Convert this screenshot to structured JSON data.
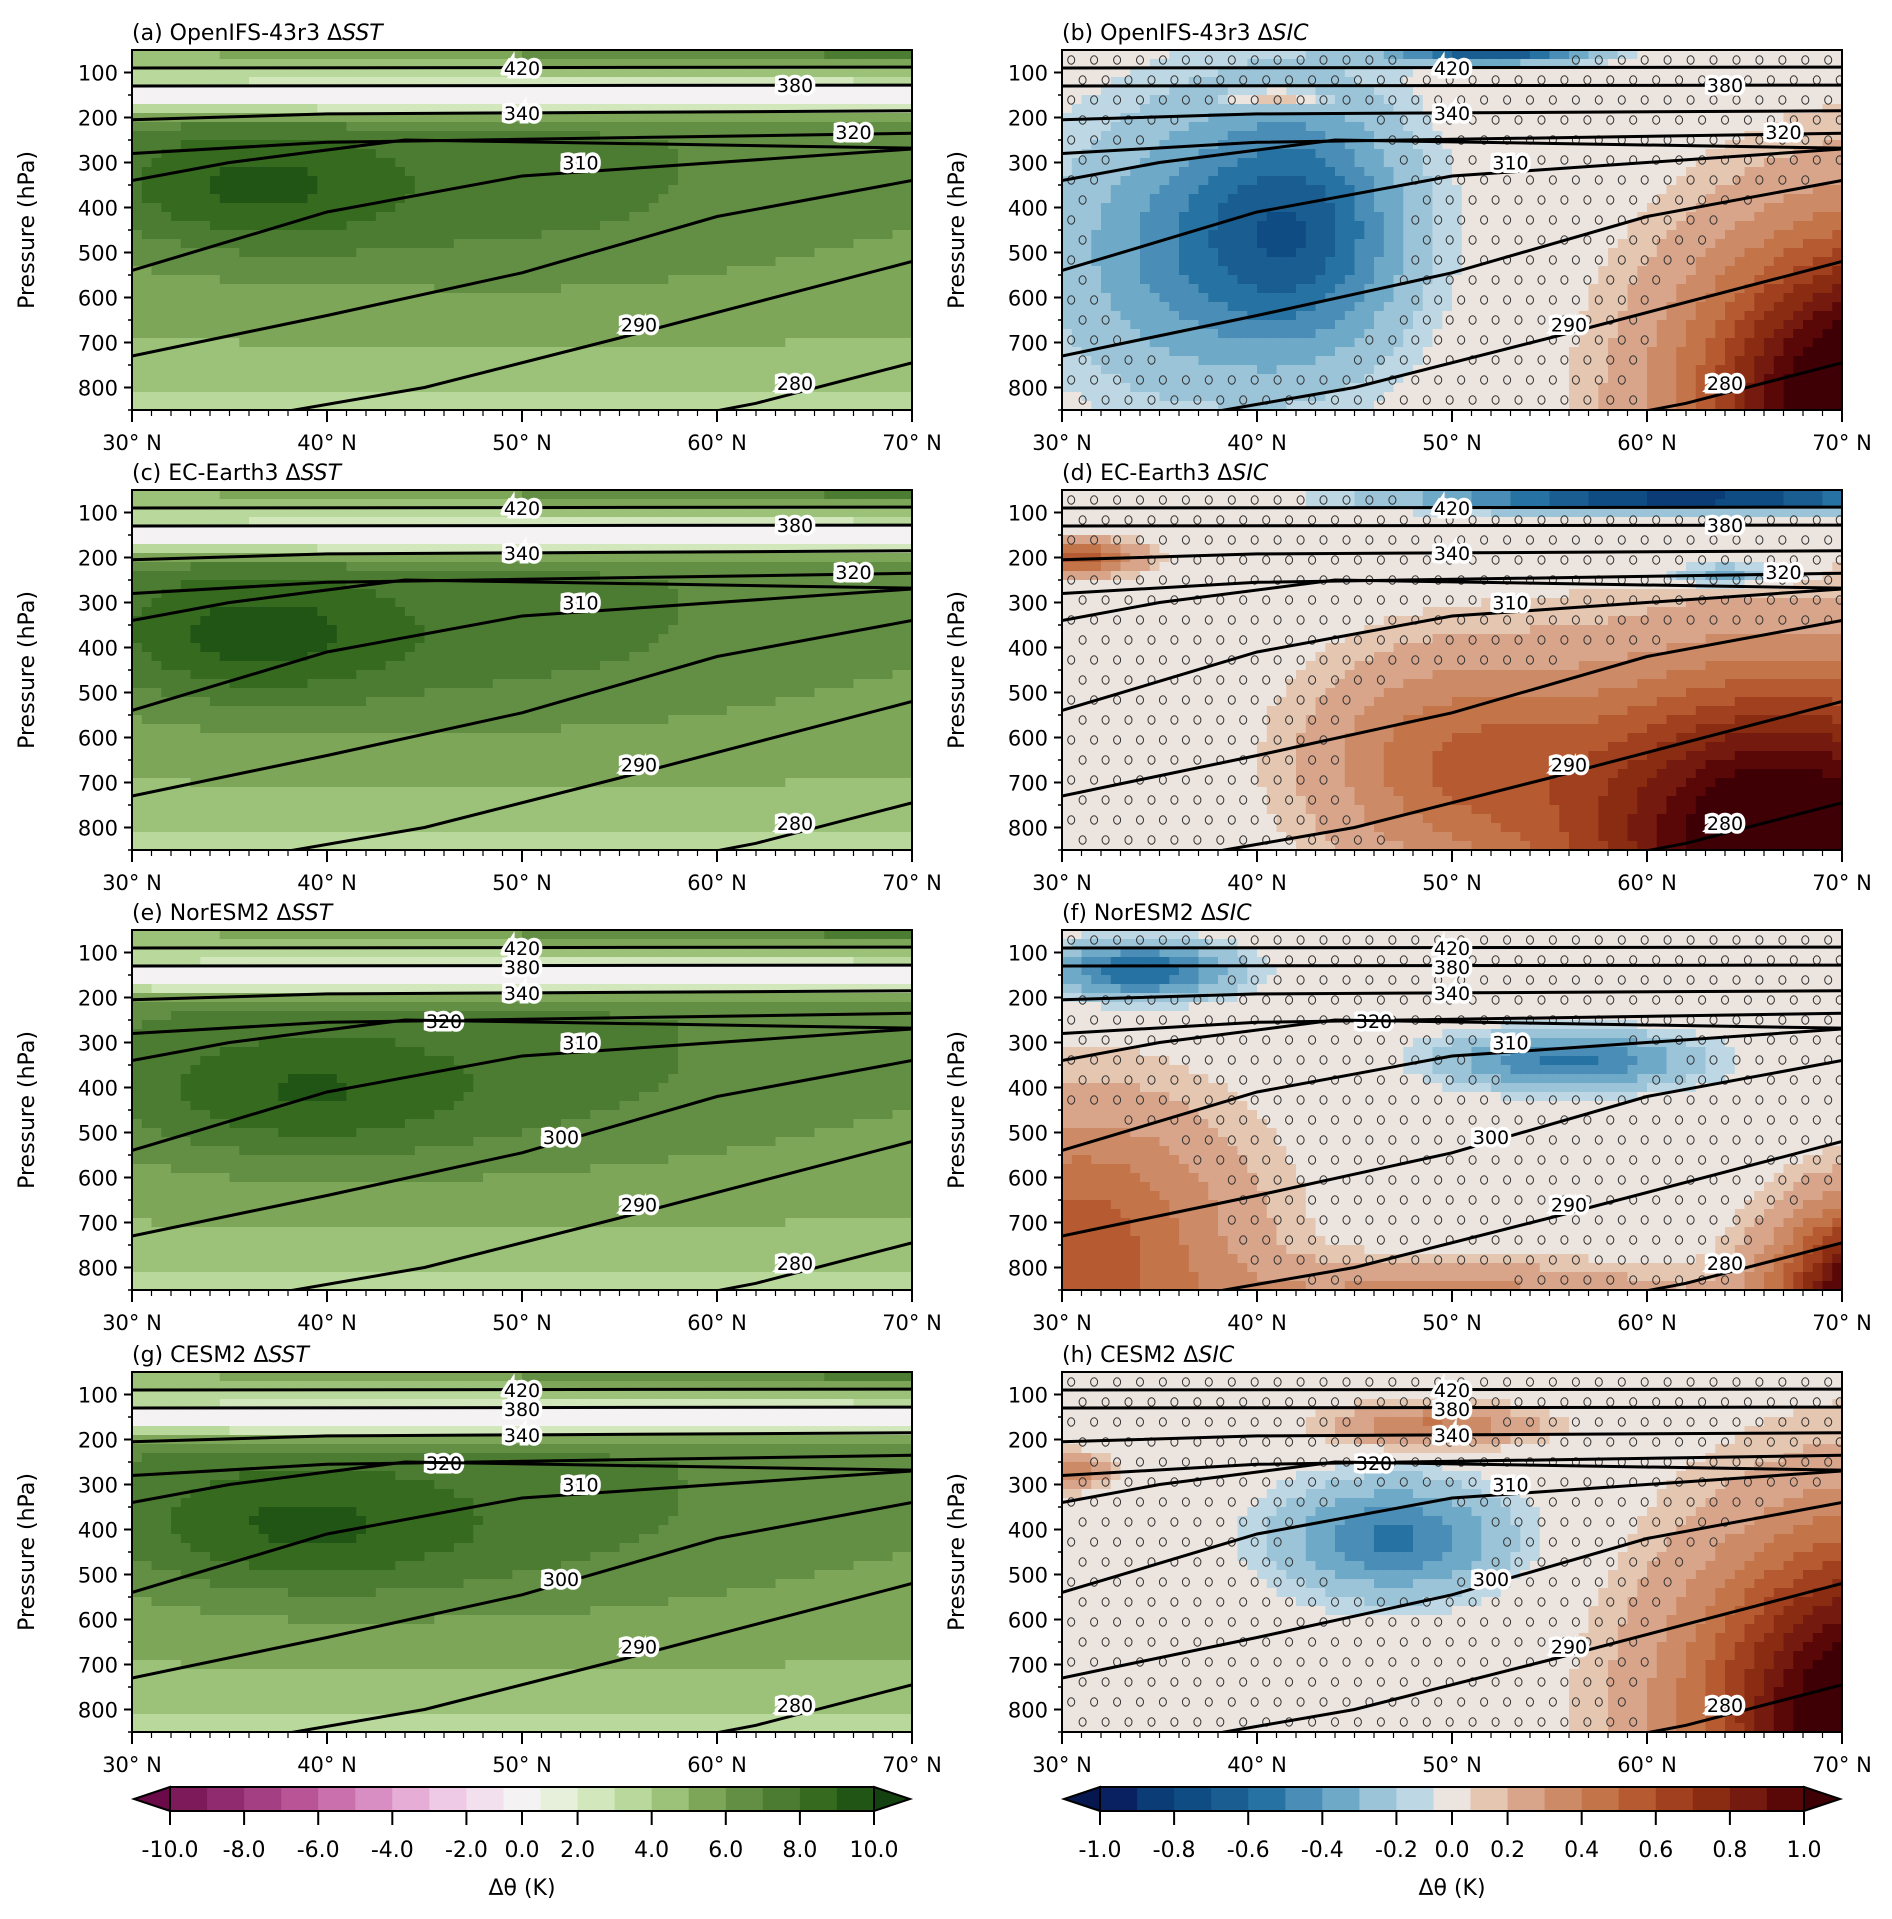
{
  "figure": {
    "ylabel": "Pressure (hPa)",
    "colorbar_label": "Δθ (K)"
  },
  "chart_data": [
    {
      "panel": "a",
      "type": "heatmap",
      "title_prefix": "(a) OpenIFS-43r3 Δ",
      "title_var": "SST",
      "colormap": "PiYG",
      "field": "SST",
      "xlabel": "",
      "ylabel": "Pressure (hPa)",
      "x_ticks": [
        "30° N",
        "40° N",
        "50° N",
        "60° N",
        "70° N"
      ],
      "xlim": [
        30,
        70
      ],
      "y_ticks": [
        100,
        200,
        300,
        400,
        500,
        600,
        700,
        800
      ],
      "ylim": [
        850,
        50
      ],
      "contour_labels": [
        420,
        380,
        340,
        320,
        310,
        290,
        280
      ],
      "stippling": false,
      "description": "Warming 2-8 K throughout troposphere, max ~8 K near 30-45N 300-450 hPa; near-zero/slightly negative band at 150 hPa"
    },
    {
      "panel": "b",
      "type": "heatmap",
      "title_prefix": "(b) OpenIFS-43r3 Δ",
      "title_var": "SIC",
      "colormap": "RdBu_r",
      "field": "SIC",
      "x_ticks": [
        "30° N",
        "40° N",
        "50° N",
        "60° N",
        "70° N"
      ],
      "xlim": [
        30,
        70
      ],
      "y_ticks": [
        100,
        200,
        300,
        400,
        500,
        600,
        700,
        800
      ],
      "ylim": [
        850,
        50
      ],
      "contour_labels": [
        420,
        380,
        340,
        320,
        310,
        290,
        280
      ],
      "stippling": true,
      "description": "Cooling up to -0.6 K at 35-48N 250-850 hPa; warming up to >1.0 K north of 58N lower troposphere"
    },
    {
      "panel": "c",
      "type": "heatmap",
      "title_prefix": "(c) EC-Earth3 Δ",
      "title_var": "SST",
      "colormap": "PiYG",
      "field": "SST",
      "x_ticks": [
        "30° N",
        "40° N",
        "50° N",
        "60° N",
        "70° N"
      ],
      "xlim": [
        30,
        70
      ],
      "y_ticks": [
        100,
        200,
        300,
        400,
        500,
        600,
        700,
        800
      ],
      "ylim": [
        850,
        50
      ],
      "contour_labels": [
        420,
        380,
        340,
        310,
        320,
        290,
        280
      ],
      "stippling": false
    },
    {
      "panel": "d",
      "type": "heatmap",
      "title_prefix": "(d) EC-Earth3 Δ",
      "title_var": "SIC",
      "colormap": "RdBu_r",
      "field": "SIC",
      "x_ticks": [
        "30° N",
        "40° N",
        "50° N",
        "60° N",
        "70° N"
      ],
      "xlim": [
        30,
        70
      ],
      "y_ticks": [
        100,
        200,
        300,
        400,
        500,
        600,
        700,
        800
      ],
      "ylim": [
        850,
        50
      ],
      "contour_labels": [
        420,
        380,
        340,
        320,
        310,
        290,
        280
      ],
      "stippling": true
    },
    {
      "panel": "e",
      "type": "heatmap",
      "title_prefix": "(e) NorESM2 Δ",
      "title_var": "SST",
      "colormap": "PiYG",
      "field": "SST",
      "x_ticks": [
        "30° N",
        "40° N",
        "50° N",
        "60° N",
        "70° N"
      ],
      "xlim": [
        30,
        70
      ],
      "y_ticks": [
        100,
        200,
        300,
        400,
        500,
        600,
        700,
        800
      ],
      "ylim": [
        850,
        50
      ],
      "contour_labels": [
        420,
        380,
        340,
        320,
        310,
        300,
        290,
        280
      ],
      "stippling": false
    },
    {
      "panel": "f",
      "type": "heatmap",
      "title_prefix": "(f) NorESM2 Δ",
      "title_var": "SIC",
      "colormap": "RdBu_r",
      "field": "SIC",
      "x_ticks": [
        "30° N",
        "40° N",
        "50° N",
        "60° N",
        "70° N"
      ],
      "xlim": [
        30,
        70
      ],
      "y_ticks": [
        100,
        200,
        300,
        400,
        500,
        600,
        700,
        800
      ],
      "ylim": [
        850,
        50
      ],
      "contour_labels": [
        420,
        380,
        340,
        320,
        310,
        300,
        290,
        280
      ],
      "stippling": true
    },
    {
      "panel": "g",
      "type": "heatmap",
      "title_prefix": "(g) CESM2 Δ",
      "title_var": "SST",
      "colormap": "PiYG",
      "field": "SST",
      "x_ticks": [
        "30° N",
        "40° N",
        "50° N",
        "60° N",
        "70° N"
      ],
      "xlim": [
        30,
        70
      ],
      "y_ticks": [
        100,
        200,
        300,
        400,
        500,
        600,
        700,
        800
      ],
      "ylim": [
        850,
        50
      ],
      "contour_labels": [
        420,
        380,
        340,
        320,
        310,
        300,
        290,
        280
      ],
      "stippling": false
    },
    {
      "panel": "h",
      "type": "heatmap",
      "title_prefix": "(h) CESM2 Δ",
      "title_var": "SIC",
      "colormap": "RdBu_r",
      "field": "SIC",
      "x_ticks": [
        "30° N",
        "40° N",
        "50° N",
        "60° N",
        "70° N"
      ],
      "xlim": [
        30,
        70
      ],
      "y_ticks": [
        100,
        200,
        300,
        400,
        500,
        600,
        700,
        800
      ],
      "ylim": [
        850,
        50
      ],
      "contour_labels": [
        420,
        380,
        340,
        320,
        310,
        300,
        290,
        280
      ],
      "stippling": true
    }
  ],
  "colorbars": [
    {
      "name": "sst",
      "label": "Δθ (K)",
      "ticks": [
        "-10.0",
        "-8.0",
        "-6.0",
        "-4.0",
        "-2.0",
        "0.0",
        "2.0",
        "4.0",
        "6.0",
        "8.0",
        "10.0"
      ],
      "colors": [
        "#6a0a48",
        "#7c1a5a",
        "#8f2b6e",
        "#a33f82",
        "#b95497",
        "#c970ad",
        "#d98ec3",
        "#e6add6",
        "#efcae6",
        "#f3e0ee",
        "#f4f2f2",
        "#e7f0db",
        "#d3e7bd",
        "#b9d99c",
        "#9bc278",
        "#7ea659",
        "#628f44",
        "#4c7c31",
        "#356a1f",
        "#215515",
        "#144110"
      ],
      "boundaries": [
        -10,
        -9,
        -8,
        -7,
        -6,
        -5,
        -4,
        -3,
        -2,
        -1,
        -0.5,
        0.5,
        1,
        2,
        3,
        4,
        5,
        6,
        7,
        8,
        9,
        10
      ],
      "extend": "both"
    },
    {
      "name": "sic",
      "label": "Δθ (K)",
      "ticks": [
        "-1.0",
        "-0.8",
        "-0.6",
        "-0.4",
        "-0.2",
        "0.0",
        "0.2",
        "0.4",
        "0.6",
        "0.8",
        "1.0"
      ],
      "colors": [
        "#06164e",
        "#0a2161",
        "#0c3c75",
        "#0f4c83",
        "#1a5d90",
        "#2672a2",
        "#4a8db7",
        "#6ea9c7",
        "#9bc4d8",
        "#bdd8e4",
        "#ece4df",
        "#e5c6b1",
        "#d9a58a",
        "#cd8a66",
        "#c37449",
        "#b65a31",
        "#a1401f",
        "#8a2c12",
        "#741a0e",
        "#5a0708",
        "#3f0005"
      ],
      "extend": "both"
    }
  ]
}
